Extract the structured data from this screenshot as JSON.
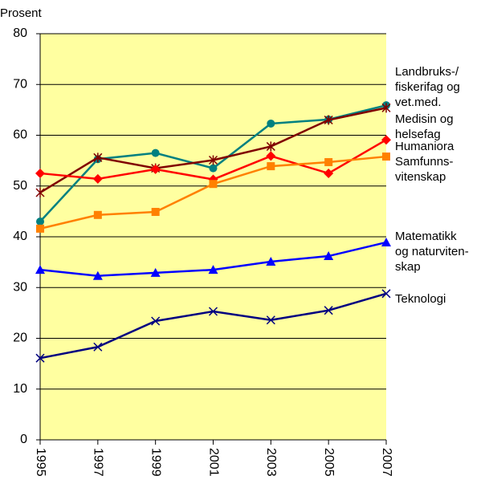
{
  "chart_data": {
    "type": "line",
    "ylabel": "Prosent",
    "categories": [
      "1995",
      "1997",
      "1999",
      "2001",
      "2003",
      "2005",
      "2007"
    ],
    "ylim": [
      0,
      80
    ],
    "yticks": [
      0,
      10,
      20,
      30,
      40,
      50,
      60,
      70,
      80
    ],
    "grid": true,
    "series": [
      {
        "name": [
          "Landbruks-/",
          "fiskerifag og",
          "vet.med."
        ],
        "color": "#008080",
        "marker": "circle",
        "values": [
          43.0,
          55.3,
          56.5,
          53.5,
          62.3,
          63.1,
          65.9
        ]
      },
      {
        "name": [
          "Medisin og",
          "helsefag"
        ],
        "color": "#800000",
        "marker": "star",
        "values": [
          48.7,
          55.6,
          53.5,
          55.1,
          57.8,
          63.0,
          65.4
        ]
      },
      {
        "name": [
          "Humaniora"
        ],
        "color": "#ff0000",
        "marker": "diamond",
        "values": [
          52.5,
          51.4,
          53.3,
          51.3,
          55.9,
          52.5,
          59.1
        ]
      },
      {
        "name": [
          "Samfunns-",
          "vitenskap"
        ],
        "color": "#ff8000",
        "marker": "square",
        "values": [
          41.6,
          44.3,
          44.9,
          50.4,
          53.9,
          54.7,
          55.8
        ]
      },
      {
        "name": [
          "Matematikk",
          "og naturviten-",
          "skap"
        ],
        "color": "#0000ff",
        "marker": "triangle",
        "values": [
          33.5,
          32.3,
          32.9,
          33.5,
          35.1,
          36.2,
          38.9
        ]
      },
      {
        "name": [
          "Teknologi"
        ],
        "color": "#000080",
        "marker": "x",
        "values": [
          16.1,
          18.3,
          23.4,
          25.3,
          23.6,
          25.5,
          28.8
        ]
      }
    ]
  }
}
